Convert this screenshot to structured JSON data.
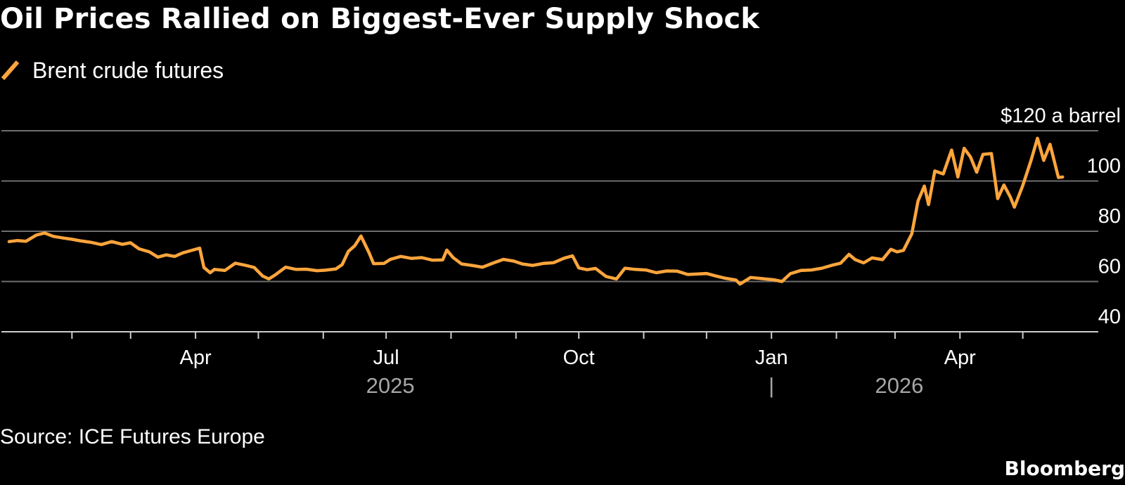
{
  "chart_data": {
    "type": "line",
    "title": "Oil Prices Rallied on Biggest-Ever Supply Shock",
    "legend": {
      "placement": "top-left",
      "entries": [
        "Brent crude futures"
      ]
    },
    "unit_label": "$120 a barrel",
    "y_ticks": [
      {
        "value": 120,
        "label": "$120 a barrel"
      },
      {
        "value": 100,
        "label": "100"
      },
      {
        "value": 80,
        "label": "80"
      },
      {
        "value": 60,
        "label": "60"
      },
      {
        "value": 40,
        "label": "40"
      }
    ],
    "ylim": [
      40,
      120
    ],
    "grid": true,
    "x_axis": {
      "type": "date",
      "range": [
        "2025-01-01",
        "2026-05-31"
      ],
      "month_ticks": [
        "2025-02-01",
        "2025-03-01",
        "2025-04-01",
        "2025-05-01",
        "2025-06-01",
        "2025-07-01",
        "2025-08-01",
        "2025-09-01",
        "2025-10-01",
        "2025-11-01",
        "2025-12-01",
        "2026-01-01",
        "2026-02-01",
        "2026-03-01",
        "2026-04-01",
        "2026-05-01"
      ],
      "labeled_ticks": [
        {
          "date": "2025-04-01",
          "label": "Apr"
        },
        {
          "date": "2025-07-01",
          "label": "Jul"
        },
        {
          "date": "2025-10-01",
          "label": "Oct"
        },
        {
          "date": "2026-01-01",
          "label": "Jan"
        },
        {
          "date": "2026-04-01",
          "label": "Apr"
        }
      ],
      "year_labels": [
        {
          "date": "2025-07-01",
          "label": "2025"
        },
        {
          "date": "2026-03-01",
          "label": "2026"
        }
      ],
      "year_separator": "|"
    },
    "series": [
      {
        "name": "Brent crude futures",
        "color": "#ffa53c",
        "points": [
          [
            "2025-01-02",
            75.9
          ],
          [
            "2025-01-06",
            76.3
          ],
          [
            "2025-01-10",
            76.0
          ],
          [
            "2025-01-15",
            78.5
          ],
          [
            "2025-01-19",
            79.3
          ],
          [
            "2025-01-23",
            78.0
          ],
          [
            "2025-01-28",
            77.3
          ],
          [
            "2025-02-01",
            76.8
          ],
          [
            "2025-02-05",
            76.2
          ],
          [
            "2025-02-10",
            75.6
          ],
          [
            "2025-02-15",
            74.7
          ],
          [
            "2025-02-20",
            75.9
          ],
          [
            "2025-02-25",
            74.8
          ],
          [
            "2025-03-01",
            75.4
          ],
          [
            "2025-03-05",
            73.0
          ],
          [
            "2025-03-10",
            71.8
          ],
          [
            "2025-03-14",
            69.7
          ],
          [
            "2025-03-18",
            70.6
          ],
          [
            "2025-03-22",
            70.0
          ],
          [
            "2025-03-26",
            71.4
          ],
          [
            "2025-03-31",
            72.6
          ],
          [
            "2025-04-03",
            73.3
          ],
          [
            "2025-04-05",
            65.6
          ],
          [
            "2025-04-08",
            63.5
          ],
          [
            "2025-04-10",
            64.8
          ],
          [
            "2025-04-15",
            64.4
          ],
          [
            "2025-04-20",
            67.3
          ],
          [
            "2025-04-25",
            66.4
          ],
          [
            "2025-04-29",
            65.6
          ],
          [
            "2025-05-03",
            62.2
          ],
          [
            "2025-05-06",
            61.0
          ],
          [
            "2025-05-09",
            62.6
          ],
          [
            "2025-05-14",
            65.7
          ],
          [
            "2025-05-19",
            64.8
          ],
          [
            "2025-05-24",
            64.9
          ],
          [
            "2025-05-29",
            64.3
          ],
          [
            "2025-06-02",
            64.5
          ],
          [
            "2025-06-07",
            65.0
          ],
          [
            "2025-06-10",
            66.7
          ],
          [
            "2025-06-13",
            72.0
          ],
          [
            "2025-06-16",
            74.2
          ],
          [
            "2025-06-19",
            78.1
          ],
          [
            "2025-06-23",
            71.2
          ],
          [
            "2025-06-25",
            67.1
          ],
          [
            "2025-06-30",
            67.2
          ],
          [
            "2025-07-03",
            68.8
          ],
          [
            "2025-07-08",
            70.0
          ],
          [
            "2025-07-13",
            69.2
          ],
          [
            "2025-07-18",
            69.5
          ],
          [
            "2025-07-23",
            68.5
          ],
          [
            "2025-07-28",
            68.6
          ],
          [
            "2025-07-30",
            72.5
          ],
          [
            "2025-08-02",
            69.5
          ],
          [
            "2025-08-06",
            67.0
          ],
          [
            "2025-08-11",
            66.4
          ],
          [
            "2025-08-16",
            65.7
          ],
          [
            "2025-08-21",
            67.3
          ],
          [
            "2025-08-26",
            68.8
          ],
          [
            "2025-08-31",
            68.1
          ],
          [
            "2025-09-04",
            67.0
          ],
          [
            "2025-09-09",
            66.4
          ],
          [
            "2025-09-14",
            67.2
          ],
          [
            "2025-09-19",
            67.5
          ],
          [
            "2025-09-24",
            69.3
          ],
          [
            "2025-09-28",
            70.2
          ],
          [
            "2025-10-01",
            65.4
          ],
          [
            "2025-10-05",
            64.7
          ],
          [
            "2025-10-09",
            65.2
          ],
          [
            "2025-10-14",
            62.0
          ],
          [
            "2025-10-19",
            61.0
          ],
          [
            "2025-10-23",
            65.3
          ],
          [
            "2025-10-28",
            64.8
          ],
          [
            "2025-11-02",
            64.6
          ],
          [
            "2025-11-07",
            63.5
          ],
          [
            "2025-11-12",
            64.2
          ],
          [
            "2025-11-17",
            64.1
          ],
          [
            "2025-11-22",
            62.8
          ],
          [
            "2025-11-27",
            63.0
          ],
          [
            "2025-12-01",
            63.2
          ],
          [
            "2025-12-05",
            62.3
          ],
          [
            "2025-12-10",
            61.3
          ],
          [
            "2025-12-15",
            60.6
          ],
          [
            "2025-12-17",
            59.0
          ],
          [
            "2025-12-22",
            61.6
          ],
          [
            "2025-12-27",
            61.2
          ],
          [
            "2026-01-02",
            60.7
          ],
          [
            "2026-01-06",
            60.0
          ],
          [
            "2026-01-10",
            63.1
          ],
          [
            "2026-01-15",
            64.4
          ],
          [
            "2026-01-20",
            64.6
          ],
          [
            "2026-01-25",
            65.3
          ],
          [
            "2026-01-30",
            66.5
          ],
          [
            "2026-02-03",
            67.3
          ],
          [
            "2026-02-07",
            70.8
          ],
          [
            "2026-02-10",
            68.7
          ],
          [
            "2026-02-14",
            67.4
          ],
          [
            "2026-02-18",
            69.4
          ],
          [
            "2026-02-23",
            68.7
          ],
          [
            "2026-02-27",
            72.8
          ],
          [
            "2026-03-02",
            71.8
          ],
          [
            "2026-03-05",
            72.4
          ],
          [
            "2026-03-09",
            79.0
          ],
          [
            "2026-03-12",
            92.1
          ],
          [
            "2026-03-15",
            98.0
          ],
          [
            "2026-03-17",
            90.6
          ],
          [
            "2026-03-20",
            104.0
          ],
          [
            "2026-03-24",
            102.8
          ],
          [
            "2026-03-28",
            112.3
          ],
          [
            "2026-03-31",
            101.6
          ],
          [
            "2026-04-03",
            113.0
          ],
          [
            "2026-04-06",
            109.6
          ],
          [
            "2026-04-09",
            103.5
          ],
          [
            "2026-04-12",
            110.6
          ],
          [
            "2026-04-16",
            110.9
          ],
          [
            "2026-04-19",
            93.0
          ],
          [
            "2026-04-22",
            98.4
          ],
          [
            "2026-04-25",
            93.7
          ],
          [
            "2026-04-27",
            89.6
          ],
          [
            "2026-05-01",
            98.2
          ],
          [
            "2026-05-05",
            108.4
          ],
          [
            "2026-05-08",
            117.0
          ],
          [
            "2026-05-11",
            108.2
          ],
          [
            "2026-05-14",
            114.6
          ],
          [
            "2026-05-18",
            101.4
          ],
          [
            "2026-05-20",
            101.6
          ]
        ]
      }
    ]
  },
  "source": "Source: ICE Futures Europe",
  "brand": "Bloomberg",
  "colors": {
    "background": "#000000",
    "line": "#ffa53c",
    "grid": "#6e6e6e",
    "axis": "#cccccc",
    "text": "#ffffff",
    "year_text": "#a6a6a6"
  }
}
